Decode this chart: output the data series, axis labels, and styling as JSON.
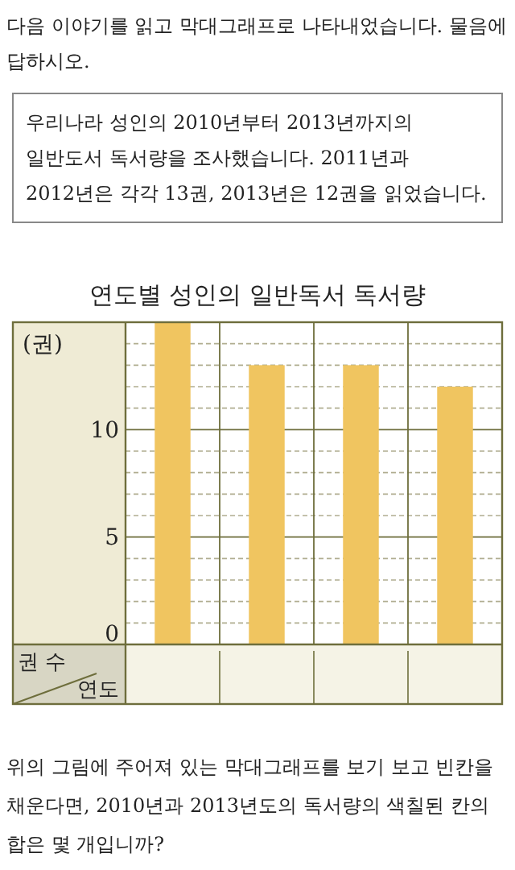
{
  "chart_data": {
    "type": "bar",
    "title": "연도별 성인의 일반독서 독서량",
    "ylabel": "(권)",
    "categories": [
      null,
      null,
      null,
      null
    ],
    "values": [
      15,
      13,
      13,
      12
    ],
    "color": "#f0c560",
    "ylim": [
      0,
      15
    ],
    "yticks": [
      0,
      {
        "value": 1,
        "label": null
      },
      {
        "value": 2,
        "label": null
      },
      {
        "value": 3,
        "label": null
      },
      {
        "value": 4,
        "label": null
      },
      5,
      {
        "value": 6,
        "label": null
      },
      {
        "value": 7,
        "label": null
      },
      {
        "value": 8,
        "label": null
      },
      {
        "value": 9,
        "label": null
      },
      10,
      {
        "value": 11,
        "label": null
      },
      {
        "value": 12,
        "label": null
      },
      {
        "value": 13,
        "label": null
      },
      {
        "value": 14,
        "label": null
      },
      {
        "value": 15,
        "label": null
      }
    ],
    "grid": true,
    "annotations": [
      "다음 이야기를 읽고 막대그래프로 나타내었습니다. 물음에 답하시오.",
      "우리나라 성인의 2010년부터 2013년까지의 일반도서 독서량을 조사했습니다. 2011년과 2012년은 각각 13권, 2013년은 12권을 읽었습니다.",
      "권 수",
      "연도",
      "위의 그림에 주어져 있는 막대그래프를 보기 보고 빈칸을 채운다면, 2010년과 2013년도의 독서량의 색칠된 칸의 합은 몇 개입니까?"
    ]
  }
}
